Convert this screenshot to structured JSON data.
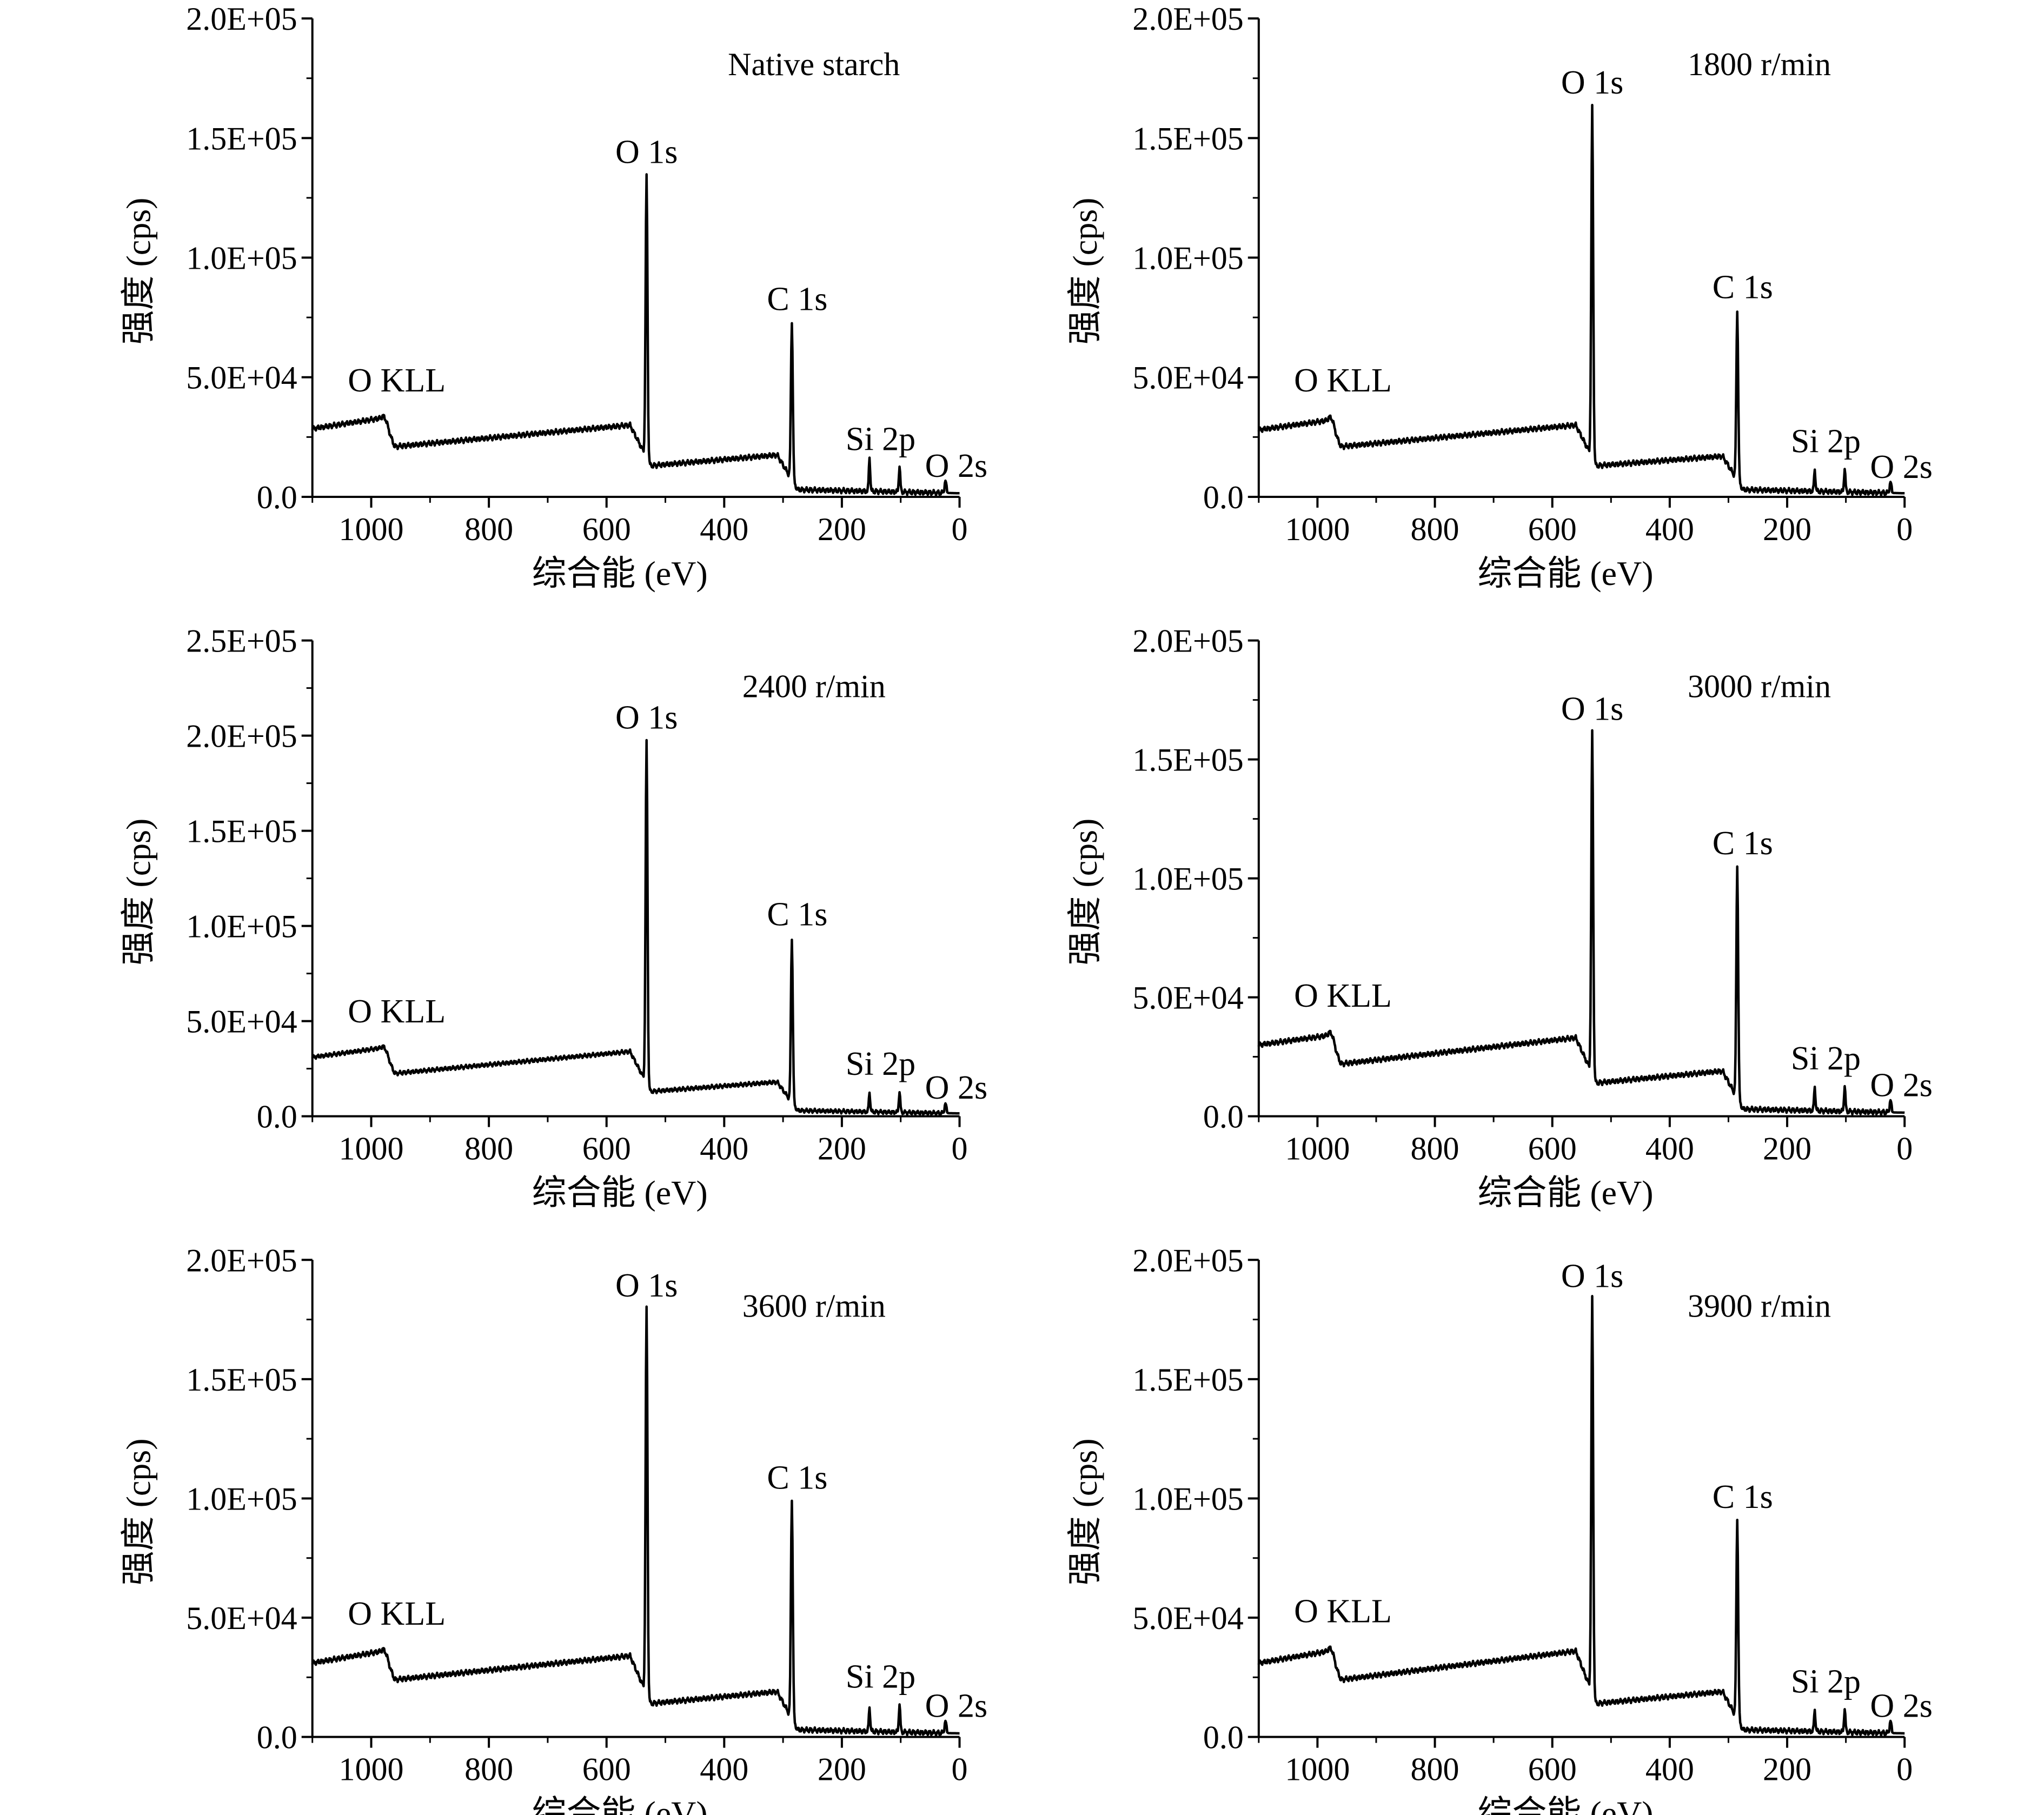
{
  "chart_data": [
    {
      "type": "line",
      "title": "Native starch",
      "xlabel": "综合能 (eV)",
      "ylabel": "强度 (cps)",
      "xlim": [
        1100,
        0
      ],
      "ylim": [
        0,
        200000
      ],
      "x_ticks": [
        1000,
        800,
        600,
        400,
        200,
        0
      ],
      "x_tick_labels": [
        "1000",
        "800",
        "600",
        "400",
        "200",
        "0"
      ],
      "y_ticks": [
        0,
        50000,
        100000,
        150000,
        200000
      ],
      "y_tick_labels": [
        "0.0",
        "5.0E+04",
        "1.0E+05",
        "1.5E+05",
        "2.0E+05"
      ],
      "peaks": [
        {
          "name": "O KLL",
          "x": 975,
          "y": 35000
        },
        {
          "name": "O 1s",
          "x": 532,
          "y": 131000
        },
        {
          "name": "C 1s",
          "x": 285,
          "y": 69000
        },
        {
          "name": "Si 2p",
          "x": 102,
          "y": 11000
        },
        {
          "name": "O 2s",
          "x": 24,
          "y": 5000
        }
      ],
      "annotations": [
        "O KLL",
        "O 1s",
        "C 1s",
        "Si 2p",
        "O 2s"
      ],
      "base": {
        "b1100": 28500,
        "b980": 33000,
        "b960": 21000,
        "b560": 30000,
        "b525": 13000,
        "b310": 17500,
        "b275": 3000,
        "b0": 1500
      },
      "si2s": 14000,
      "si2p": 11000,
      "o2s": 5000
    },
    {
      "type": "line",
      "title": "1800 r/min",
      "xlabel": "综合能 (eV)",
      "ylabel": "强度 (cps)",
      "xlim": [
        1100,
        0
      ],
      "ylim": [
        0,
        200000
      ],
      "x_ticks": [
        1000,
        800,
        600,
        400,
        200,
        0
      ],
      "x_tick_labels": [
        "1000",
        "800",
        "600",
        "400",
        "200",
        "0"
      ],
      "y_ticks": [
        0,
        50000,
        100000,
        150000,
        200000
      ],
      "y_tick_labels": [
        "0.0",
        "5.0E+04",
        "1.0E+05",
        "1.5E+05",
        "2.0E+05"
      ],
      "peaks": [
        {
          "name": "O KLL",
          "x": 975,
          "y": 35000
        },
        {
          "name": "O 1s",
          "x": 532,
          "y": 160000
        },
        {
          "name": "C 1s",
          "x": 285,
          "y": 74000
        },
        {
          "name": "Si 2p",
          "x": 102,
          "y": 10000
        },
        {
          "name": "O 2s",
          "x": 24,
          "y": 4500
        }
      ],
      "annotations": [
        "O KLL",
        "O 1s",
        "C 1s",
        "Si 2p",
        "O 2s"
      ],
      "base": {
        "b1100": 28000,
        "b980": 32000,
        "b960": 21000,
        "b560": 30000,
        "b525": 13000,
        "b310": 17000,
        "b275": 3000,
        "b0": 1500
      },
      "si2s": 9000,
      "si2p": 10000,
      "o2s": 4500
    },
    {
      "type": "line",
      "title": "2400 r/min",
      "xlabel": "综合能 (eV)",
      "ylabel": "强度 (cps)",
      "xlim": [
        1100,
        0
      ],
      "ylim": [
        0,
        250000
      ],
      "x_ticks": [
        1000,
        800,
        600,
        400,
        200,
        0
      ],
      "x_tick_labels": [
        "1000",
        "800",
        "600",
        "400",
        "200",
        "0"
      ],
      "y_ticks": [
        0,
        50000,
        100000,
        150000,
        200000,
        250000
      ],
      "y_tick_labels": [
        "0.0",
        "5.0E+04",
        "1.0E+05",
        "1.5E+05",
        "2.0E+05",
        "2.5E+05"
      ],
      "peaks": [
        {
          "name": "O KLL",
          "x": 975,
          "y": 38000
        },
        {
          "name": "O 1s",
          "x": 532,
          "y": 193000
        },
        {
          "name": "C 1s",
          "x": 285,
          "y": 89000
        },
        {
          "name": "Si 2p",
          "x": 102,
          "y": 11000
        },
        {
          "name": "O 2s",
          "x": 24,
          "y": 5000
        }
      ],
      "annotations": [
        "O KLL",
        "O 1s",
        "C 1s",
        "Si 2p",
        "O 2s"
      ],
      "base": {
        "b1100": 31000,
        "b980": 36000,
        "b960": 22500,
        "b560": 34000,
        "b525": 13000,
        "b310": 18000,
        "b275": 3000,
        "b0": 1500
      },
      "si2s": 10000,
      "si2p": 11000,
      "o2s": 5000
    },
    {
      "type": "line",
      "title": "3000 r/min",
      "xlabel": "综合能 (eV)",
      "ylabel": "强度 (cps)",
      "xlim": [
        1100,
        0
      ],
      "ylim": [
        0,
        200000
      ],
      "x_ticks": [
        1000,
        800,
        600,
        400,
        200,
        0
      ],
      "x_tick_labels": [
        "1000",
        "800",
        "600",
        "400",
        "200",
        "0"
      ],
      "y_ticks": [
        0,
        50000,
        100000,
        150000,
        200000
      ],
      "y_tick_labels": [
        "0.0",
        "5.0E+04",
        "1.0E+05",
        "1.5E+05",
        "2.0E+05"
      ],
      "peaks": [
        {
          "name": "O KLL",
          "x": 975,
          "y": 37000
        },
        {
          "name": "O 1s",
          "x": 532,
          "y": 158000
        },
        {
          "name": "C 1s",
          "x": 285,
          "y": 101000
        },
        {
          "name": "Si 2p",
          "x": 102,
          "y": 11000
        },
        {
          "name": "O 2s",
          "x": 24,
          "y": 5000
        }
      ],
      "annotations": [
        "O KLL",
        "O 1s",
        "C 1s",
        "Si 2p",
        "O 2s"
      ],
      "base": {
        "b1100": 30000,
        "b980": 34000,
        "b960": 22000,
        "b560": 33000,
        "b525": 14000,
        "b310": 19000,
        "b275": 3000,
        "b0": 1500
      },
      "si2s": 10000,
      "si2p": 11000,
      "o2s": 5000
    },
    {
      "type": "line",
      "title": "3600 r/min",
      "xlabel": "综合能 (eV)",
      "ylabel": "强度 (cps)",
      "xlim": [
        1100,
        0
      ],
      "ylim": [
        0,
        200000
      ],
      "x_ticks": [
        1000,
        800,
        600,
        400,
        200,
        0
      ],
      "x_tick_labels": [
        "1000",
        "800",
        "600",
        "400",
        "200",
        "0"
      ],
      "y_ticks": [
        0,
        50000,
        100000,
        150000,
        200000
      ],
      "y_tick_labels": [
        "0.0",
        "5.0E+04",
        "1.0E+05",
        "1.5E+05",
        "2.0E+05"
      ],
      "peaks": [
        {
          "name": "O KLL",
          "x": 975,
          "y": 38000
        },
        {
          "name": "O 1s",
          "x": 532,
          "y": 176000
        },
        {
          "name": "C 1s",
          "x": 285,
          "y": 95000
        },
        {
          "name": "Si 2p",
          "x": 102,
          "y": 12000
        },
        {
          "name": "O 2s",
          "x": 24,
          "y": 5000
        }
      ],
      "annotations": [
        "O KLL",
        "O 1s",
        "C 1s",
        "Si 2p",
        "O 2s"
      ],
      "base": {
        "b1100": 31000,
        "b980": 36000,
        "b960": 24000,
        "b560": 34000,
        "b525": 14000,
        "b310": 19000,
        "b275": 3000,
        "b0": 1500
      },
      "si2s": 10000,
      "si2p": 12000,
      "o2s": 5000
    },
    {
      "type": "line",
      "title": "3900 r/min",
      "xlabel": "综合能 (eV)",
      "ylabel": "强度 (cps)",
      "xlim": [
        1100,
        0
      ],
      "ylim": [
        0,
        200000
      ],
      "x_ticks": [
        1000,
        800,
        600,
        400,
        200,
        0
      ],
      "x_tick_labels": [
        "1000",
        "800",
        "600",
        "400",
        "200",
        "0"
      ],
      "y_ticks": [
        0,
        50000,
        100000,
        150000,
        200000
      ],
      "y_tick_labels": [
        "0.0",
        "5.0E+04",
        "1.0E+05",
        "1.5E+05",
        "2.0E+05"
      ],
      "peaks": [
        {
          "name": "O KLL",
          "x": 975,
          "y": 39000
        },
        {
          "name": "O 1s",
          "x": 532,
          "y": 180000
        },
        {
          "name": "C 1s",
          "x": 285,
          "y": 87000
        },
        {
          "name": "Si 2p",
          "x": 102,
          "y": 10000
        },
        {
          "name": "O 2s",
          "x": 24,
          "y": 5000
        }
      ],
      "annotations": [
        "O KLL",
        "O 1s",
        "C 1s",
        "Si 2p",
        "O 2s"
      ],
      "base": {
        "b1100": 31000,
        "b980": 36000,
        "b960": 24000,
        "b560": 36000,
        "b525": 14000,
        "b310": 19000,
        "b275": 3000,
        "b0": 1500
      },
      "si2s": 9000,
      "si2p": 10000,
      "o2s": 5000
    }
  ]
}
